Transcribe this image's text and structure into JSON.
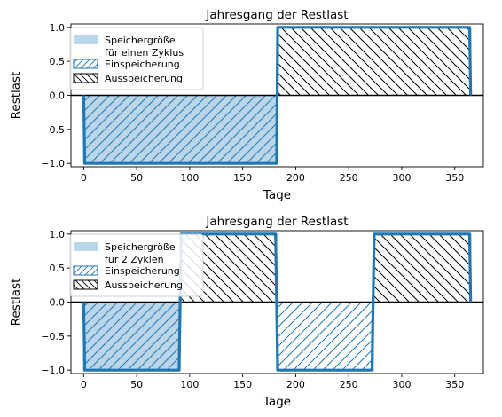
{
  "chart_data": [
    {
      "type": "area",
      "title": "Jahresgang der Restlast",
      "xlabel": "Tage",
      "ylabel": "Restlast",
      "xlim": [
        -12,
        377
      ],
      "ylim": [
        -1.05,
        1.05
      ],
      "xticks": [
        0,
        50,
        100,
        150,
        200,
        250,
        300,
        350
      ],
      "xtick_labels": [
        "0",
        "50",
        "100",
        "150",
        "200",
        "250",
        "300",
        "350"
      ],
      "yticks": [
        -1.0,
        -0.5,
        0.0,
        0.5,
        1.0
      ],
      "ytick_labels": [
        "−1.0",
        "−0.5",
        "0.0",
        "0.5",
        "1.0"
      ],
      "x": [
        0,
        1,
        182,
        183,
        364,
        365
      ],
      "y": [
        0,
        -1,
        -1,
        1,
        1,
        0
      ],
      "line_color": "#1f77b4",
      "storage_fill": [
        {
          "from": 0,
          "to": 182.5,
          "value": -1
        }
      ],
      "einspeicherung": [
        {
          "from": 0,
          "to": 182.5,
          "value": -1
        }
      ],
      "ausspeicherung": [
        {
          "from": 182.5,
          "to": 365,
          "value": 1
        }
      ],
      "legend_position": "upper-left",
      "legend": [
        {
          "label": "Speichergröße",
          "label2": "für einen Zyklus",
          "style": "filled",
          "color": "#1f77b4"
        },
        {
          "label": "Einspeicherung",
          "style": "hatch-forward",
          "color": "#1f77b4"
        },
        {
          "label": "Ausspeicherung",
          "style": "hatch-back",
          "color": "#000000"
        }
      ]
    },
    {
      "type": "area",
      "title": "Jahresgang der Restlast",
      "xlabel": "Tage",
      "ylabel": "Restlast",
      "xlim": [
        -12,
        377
      ],
      "ylim": [
        -1.05,
        1.05
      ],
      "xticks": [
        0,
        50,
        100,
        150,
        200,
        250,
        300,
        350
      ],
      "xtick_labels": [
        "0",
        "50",
        "100",
        "150",
        "200",
        "250",
        "300",
        "350"
      ],
      "yticks": [
        -1.0,
        -0.5,
        0.0,
        0.5,
        1.0
      ],
      "ytick_labels": [
        "−1.0",
        "−0.5",
        "0.0",
        "0.5",
        "1.0"
      ],
      "x": [
        0,
        1,
        90,
        92,
        181,
        183,
        272,
        274,
        364,
        365
      ],
      "y": [
        0,
        -1,
        -1,
        1,
        1,
        -1,
        -1,
        1,
        1,
        0
      ],
      "line_color": "#1f77b4",
      "storage_fill": [
        {
          "from": 0,
          "to": 91,
          "value": -1
        }
      ],
      "einspeicherung": [
        {
          "from": 0,
          "to": 91,
          "value": -1
        },
        {
          "from": 182,
          "to": 273,
          "value": -1
        }
      ],
      "ausspeicherung": [
        {
          "from": 91,
          "to": 182,
          "value": 1
        },
        {
          "from": 273,
          "to": 365,
          "value": 1
        }
      ],
      "legend_position": "upper-left",
      "legend": [
        {
          "label": "Speichergröße",
          "label2": "für 2 Zyklen",
          "style": "filled",
          "color": "#1f77b4"
        },
        {
          "label": "Einspeicherung",
          "style": "hatch-forward",
          "color": "#1f77b4"
        },
        {
          "label": "Ausspeicherung",
          "style": "hatch-back",
          "color": "#000000"
        }
      ]
    }
  ]
}
